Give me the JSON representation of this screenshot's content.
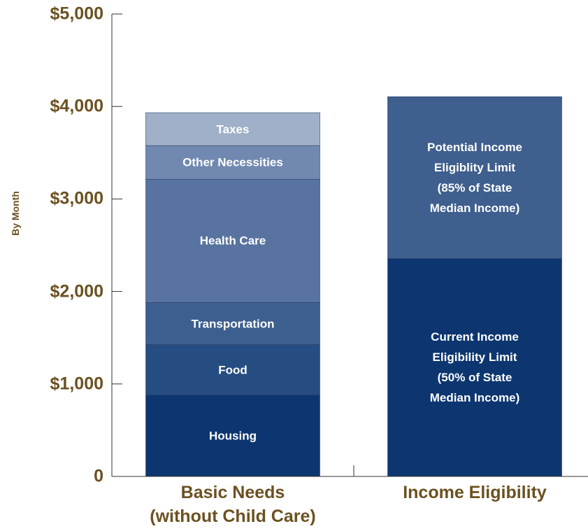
{
  "chart_data": {
    "type": "stacked-bar",
    "y_label": "By Month",
    "categories": [
      "Basic Needs\n(without Child Care)",
      "Income Eligibility"
    ],
    "series": [
      {
        "name": "Housing",
        "color": "#0d3670",
        "values": [
          880,
          null
        ]
      },
      {
        "name": "Food",
        "color": "#264d82",
        "values": [
          545,
          null
        ]
      },
      {
        "name": "Transportation",
        "color": "#3d5f8f",
        "values": [
          455,
          null
        ]
      },
      {
        "name": "Health Care",
        "color": "#58739f",
        "values": [
          1333,
          null
        ]
      },
      {
        "name": "Other Necessities",
        "color": "#7189b0",
        "values": [
          364,
          null
        ]
      },
      {
        "name": "Taxes",
        "color": "#a0b0c8",
        "values": [
          356,
          null
        ]
      },
      {
        "name": "Current Income\nEligibility Limit\n(50% of State\nMedian Income)",
        "color": "#0d3670",
        "values": [
          null,
          2356
        ]
      },
      {
        "name": "Potential Income\nEligiblity Limit\n(85% of State\nMedian Income)",
        "color": "#3f5f8e",
        "values": [
          null,
          1750
        ]
      }
    ],
    "ylim": [
      0,
      5000
    ],
    "yticks": [
      0,
      {
        "value": 1000,
        "label": "$1,000"
      },
      {
        "value": 2000,
        "label": "$2,000"
      },
      {
        "value": 3000,
        "label": "$3,000"
      },
      {
        "value": 4000,
        "label": "$4,000"
      },
      {
        "value": 5000,
        "label": "$5,000"
      }
    ]
  }
}
